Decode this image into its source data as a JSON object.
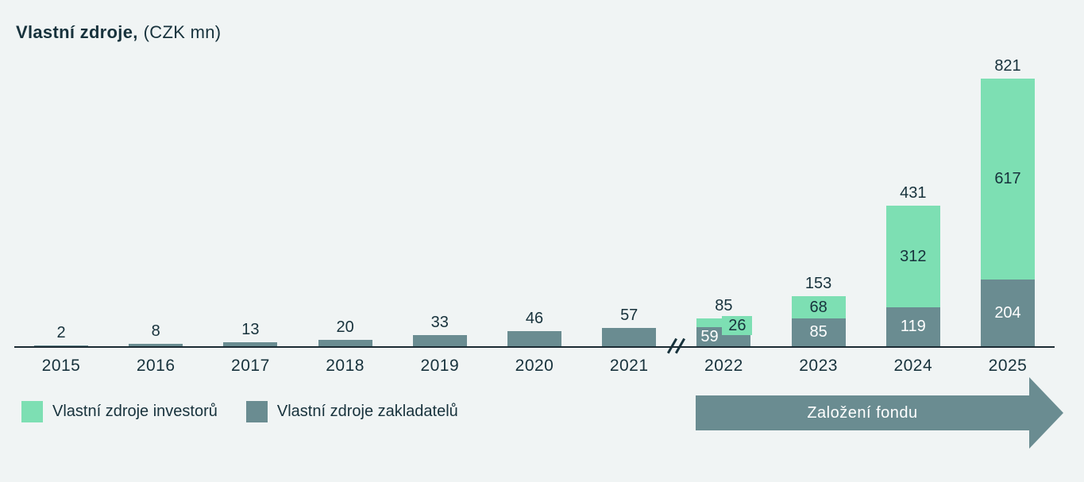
{
  "title": {
    "bold": "Vlastní zdroje,",
    "unit": "(CZK mn)"
  },
  "colors": {
    "background": "#F0F4F4",
    "text_dark": "#17323C",
    "investors": "#7DDFB3",
    "founders": "#6A8C91",
    "label_on_founders": "#FFFFFF",
    "axis_line": "#1B2B33"
  },
  "chart_data": {
    "type": "bar",
    "stacked": true,
    "title": "Vlastní zdroje, (CZK mn)",
    "xlabel": "",
    "ylabel": "",
    "categories": [
      "2015",
      "2016",
      "2017",
      "2018",
      "2019",
      "2020",
      "2021",
      "2022",
      "2023",
      "2024",
      "2025"
    ],
    "series": [
      {
        "name": "Vlastní zdroje zakladatelů",
        "color_key": "founders",
        "values": [
          2,
          8,
          13,
          20,
          33,
          46,
          57,
          59,
          85,
          119,
          204
        ]
      },
      {
        "name": "Vlastní zdroje investorů",
        "color_key": "investors",
        "values": [
          0,
          0,
          0,
          0,
          0,
          0,
          0,
          26,
          68,
          312,
          617
        ]
      }
    ],
    "totals": [
      2,
      8,
      13,
      20,
      33,
      46,
      57,
      85,
      153,
      431,
      821
    ],
    "axis_break": {
      "after_index": 6,
      "symbol": "//"
    },
    "grid": "off",
    "legend_position": "bottom-left"
  },
  "legend": {
    "items": [
      {
        "label": "Vlastní zdroje investorů",
        "color_key": "investors"
      },
      {
        "label": "Vlastní zdroje zakladatelů",
        "color_key": "founders"
      }
    ]
  },
  "annotation_arrow": {
    "label": "Založení fondu"
  }
}
